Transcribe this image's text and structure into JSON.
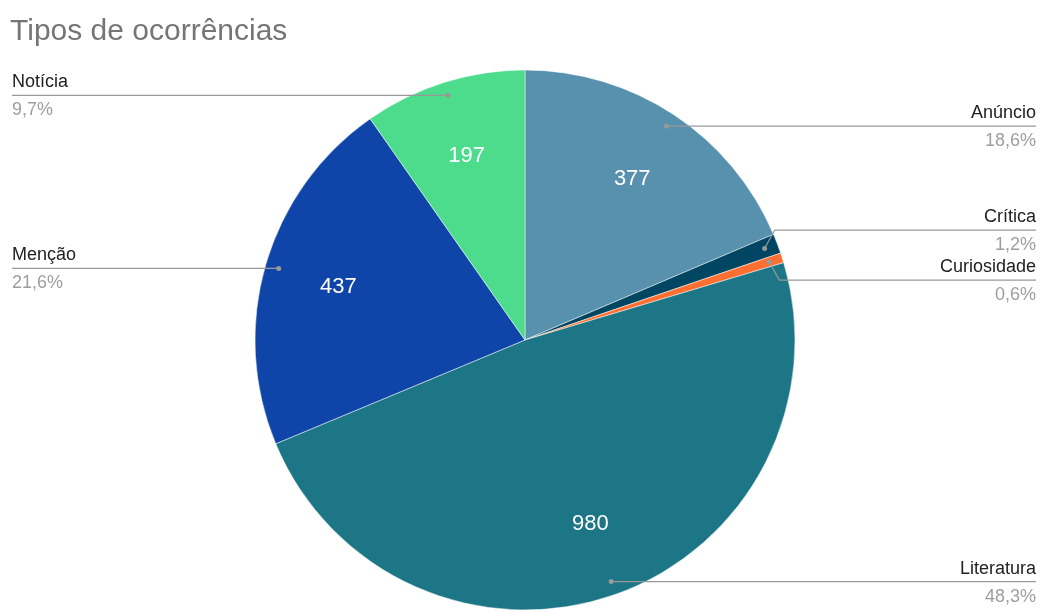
{
  "chart_data": {
    "type": "pie",
    "title": "Tipos de ocorrências",
    "categories": [
      "Anúncio",
      "Crítica",
      "Curiosidade",
      "Literatura",
      "Menção",
      "Notícia"
    ],
    "values": [
      377,
      24,
      12,
      980,
      437,
      197
    ],
    "value_labels": [
      "377",
      null,
      null,
      "980",
      "437",
      "197"
    ],
    "colors": [
      "#5891ad",
      "#004561",
      "#ff6f31",
      "#1c7685",
      "#0f45a8",
      "#4cdc8b"
    ],
    "annotations": [
      "18,6%",
      "1,2%",
      "0,6%",
      "48,3%",
      "21,6%",
      "9,7%"
    ]
  }
}
